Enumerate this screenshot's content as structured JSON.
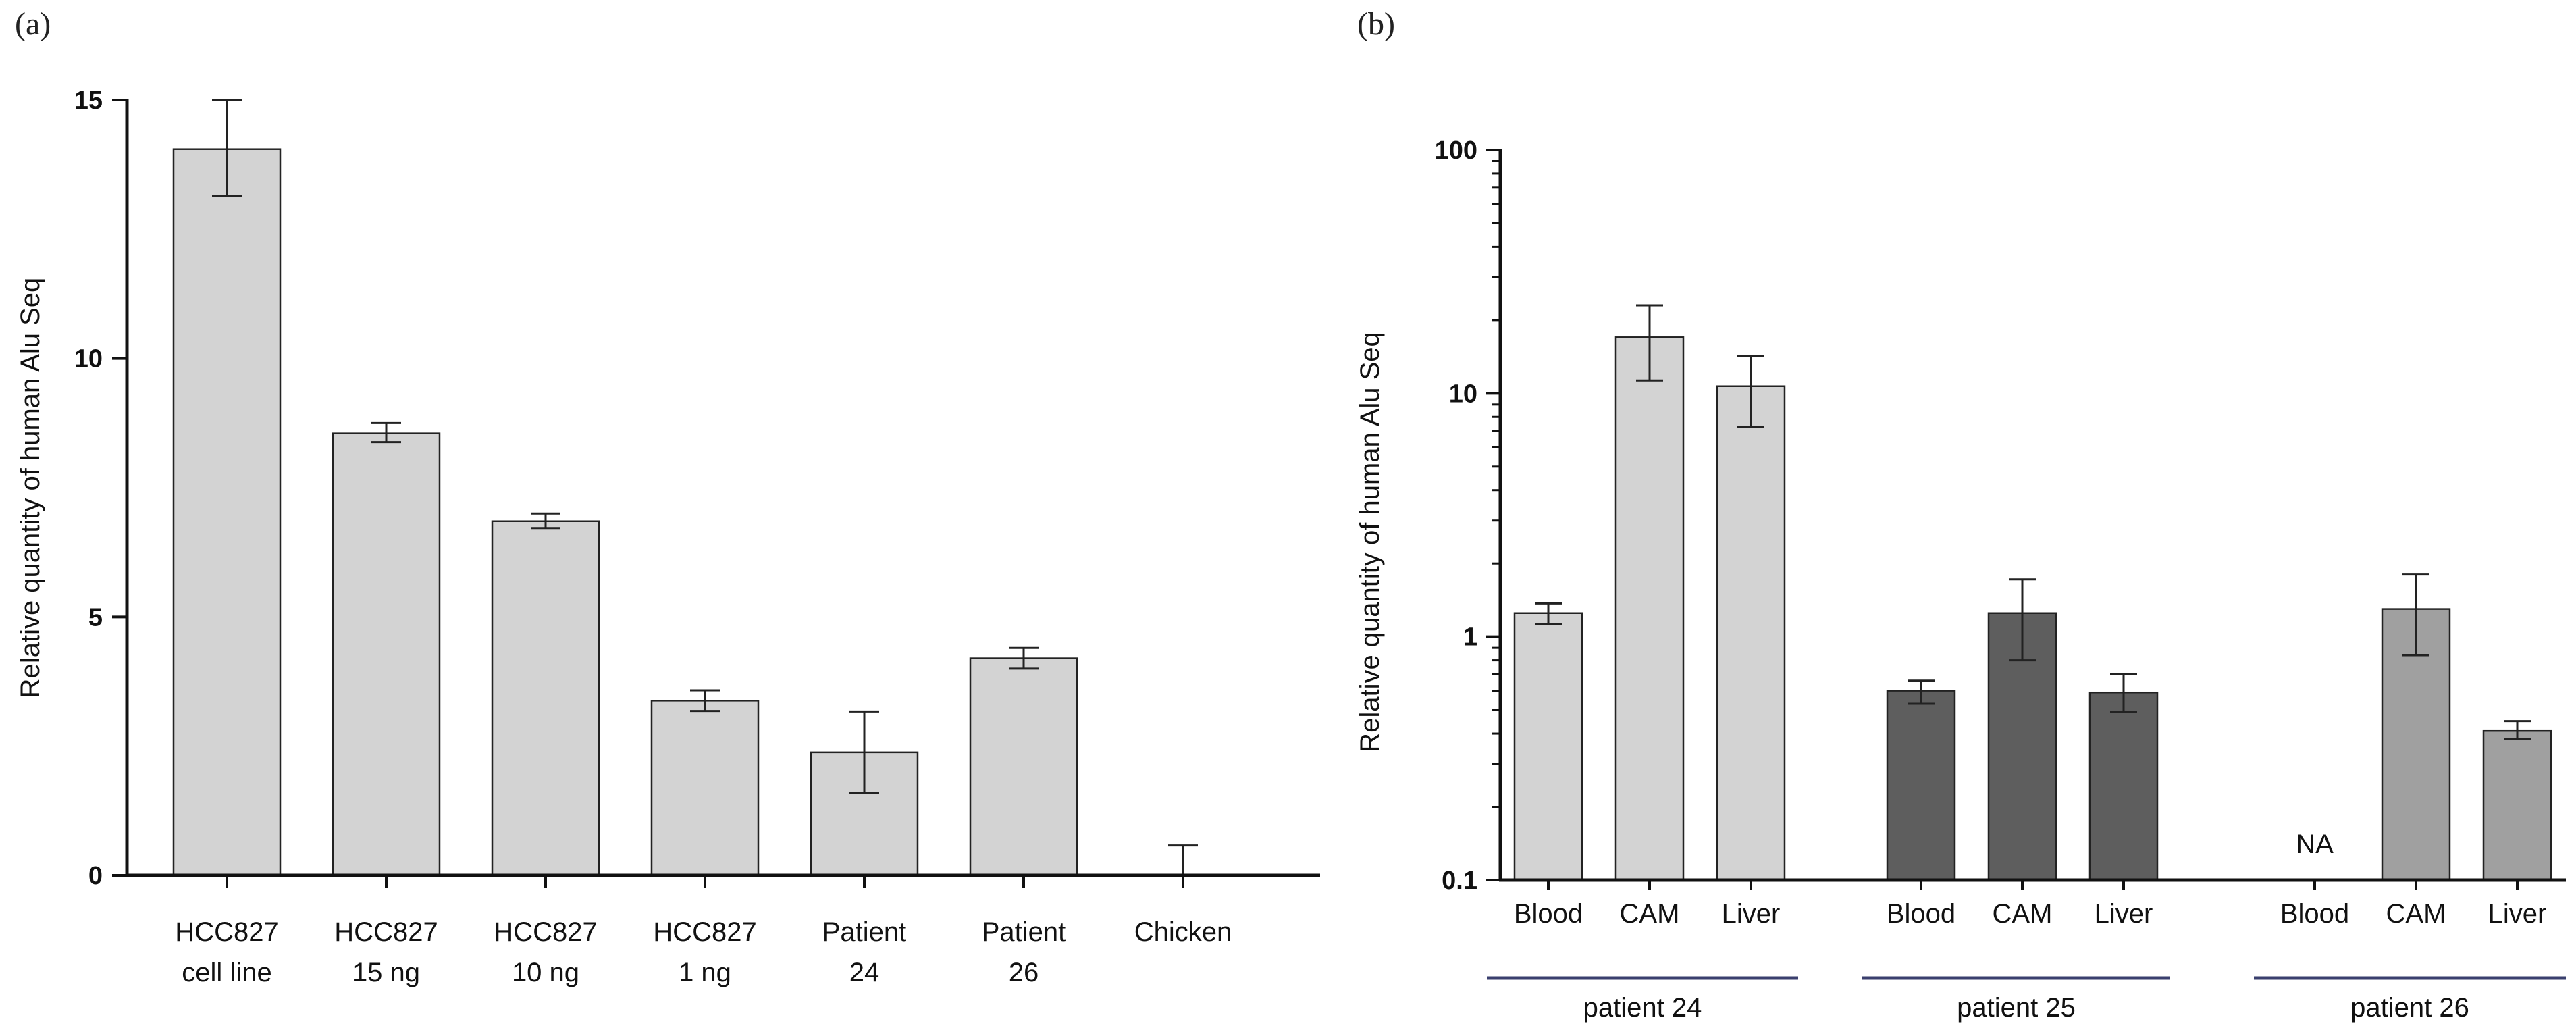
{
  "chart_data": [
    {
      "panel_label": "(a)",
      "type": "bar",
      "ylabel": "Relative quantity of human Alu Seq",
      "ylim": [
        0,
        15
      ],
      "yticks": [
        "0",
        "5",
        "10",
        "15"
      ],
      "categories": [
        {
          "line1": "HCC827",
          "line2": "cell line",
          "value": 14.05,
          "err_low": 13.15,
          "err_high": 15.0
        },
        {
          "line1": "HCC827",
          "line2": "15 ng",
          "value": 8.55,
          "err_low": 8.38,
          "err_high": 8.75
        },
        {
          "line1": "HCC827",
          "line2": "10 ng",
          "value": 6.85,
          "err_low": 6.72,
          "err_high": 7.0
        },
        {
          "line1": "HCC827",
          "line2": "1 ng",
          "value": 3.38,
          "err_low": 3.18,
          "err_high": 3.58
        },
        {
          "line1": "Patient",
          "line2": "24",
          "value": 2.38,
          "err_low": 1.6,
          "err_high": 3.17
        },
        {
          "line1": "Patient",
          "line2": "26",
          "value": 4.2,
          "err_low": 4.0,
          "err_high": 4.4
        },
        {
          "line1": "Chicken",
          "line2": "",
          "value": 0,
          "err_low": 0,
          "err_high": 0.58
        }
      ],
      "bar_color": "#d3d3d3"
    },
    {
      "panel_label": "(b)",
      "type": "bar",
      "yscale": "log",
      "ylabel": "Relative quantity of human Alu Seq",
      "ylim": [
        0.1,
        100
      ],
      "yticks": [
        "0.1",
        "1",
        "10",
        "100"
      ],
      "groups": [
        {
          "name": "patient 24",
          "color": "#d3d3d3",
          "bars": [
            {
              "label": "Blood",
              "value": 1.25,
              "err_low": 1.13,
              "err_high": 1.37
            },
            {
              "label": "CAM",
              "value": 17.0,
              "err_low": 11.3,
              "err_high": 23.0
            },
            {
              "label": "Liver",
              "value": 10.7,
              "err_low": 7.3,
              "err_high": 14.2
            }
          ]
        },
        {
          "name": "patient 25",
          "color": "#5e5e5e",
          "bars": [
            {
              "label": "Blood",
              "value": 0.6,
              "err_low": 0.53,
              "err_high": 0.66
            },
            {
              "label": "CAM",
              "value": 1.25,
              "err_low": 0.8,
              "err_high": 1.72
            },
            {
              "label": "Liver",
              "value": 0.59,
              "err_low": 0.49,
              "err_high": 0.7
            }
          ]
        },
        {
          "name": "patient 26",
          "color": "#a0a0a0",
          "bars": [
            {
              "label": "Blood",
              "value": null,
              "na_text": "NA"
            },
            {
              "label": "CAM",
              "value": 1.3,
              "err_low": 0.84,
              "err_high": 1.8
            },
            {
              "label": "Liver",
              "value": 0.41,
              "err_low": 0.38,
              "err_high": 0.45
            }
          ]
        }
      ],
      "group_line_color": "#3a3f6e"
    }
  ]
}
